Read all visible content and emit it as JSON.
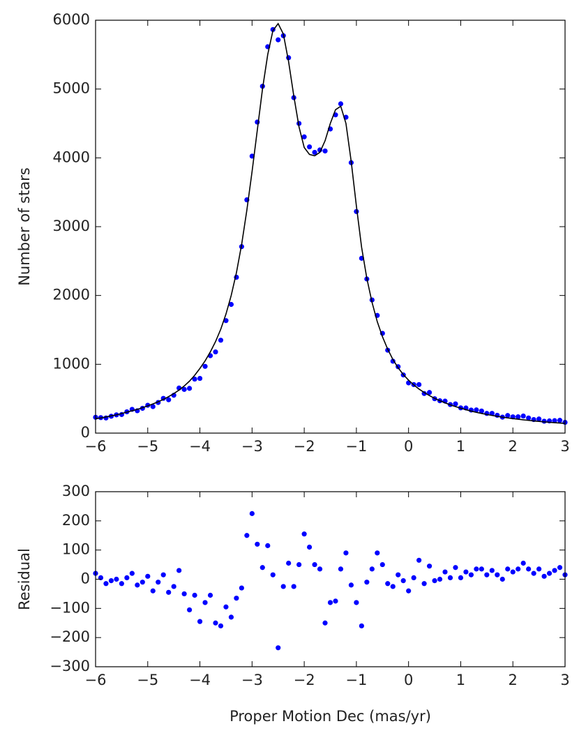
{
  "chart_data": [
    {
      "type": "scatter",
      "ylabel": "Number of stars",
      "xlim": [
        -6,
        3
      ],
      "xticks": [
        {
          "value": -6,
          "label": "−6"
        },
        {
          "value": -5,
          "label": "−5"
        },
        {
          "value": -4,
          "label": "−4"
        },
        {
          "value": -3,
          "label": "−3"
        },
        {
          "value": -2,
          "label": "−2"
        },
        {
          "value": -1,
          "label": "−1"
        },
        0,
        1,
        2,
        3
      ],
      "ylim": [
        0,
        6000
      ],
      "yticks": [
        0,
        1000,
        2000,
        3000,
        4000,
        5000,
        6000
      ],
      "x": [
        -6.0,
        -5.9,
        -5.8,
        -5.7,
        -5.6,
        -5.5,
        -5.4,
        -5.3,
        -5.2,
        -5.1,
        -5.0,
        -4.9,
        -4.8,
        -4.7,
        -4.6,
        -4.5,
        -4.4,
        -4.3,
        -4.2,
        -4.1,
        -4.0,
        -3.9,
        -3.8,
        -3.7,
        -3.6,
        -3.5,
        -3.4,
        -3.3,
        -3.2,
        -3.1,
        -3.0,
        -2.9,
        -2.8,
        -2.7,
        -2.6,
        -2.5,
        -2.4,
        -2.3,
        -2.2,
        -2.1,
        -2.0,
        -1.9,
        -1.8,
        -1.7,
        -1.6,
        -1.5,
        -1.4,
        -1.3,
        -1.2,
        -1.1,
        -1.0,
        -0.9,
        -0.8,
        -0.7,
        -0.6,
        -0.5,
        -0.4,
        -0.3,
        -0.2,
        -0.1,
        0.0,
        0.1,
        0.2,
        0.3,
        0.4,
        0.5,
        0.6,
        0.7,
        0.8,
        0.9,
        1.0,
        1.1,
        1.2,
        1.3,
        1.4,
        1.5,
        1.6,
        1.7,
        1.8,
        1.9,
        2.0,
        2.1,
        2.2,
        2.3,
        2.4,
        2.5,
        2.6,
        2.7,
        2.8,
        2.9,
        3.0
      ],
      "series": [
        {
          "mode": "markers",
          "color": "#0000ff",
          "values": [
            230,
            225,
            220,
            245,
            265,
            270,
            310,
            345,
            325,
            360,
            405,
            385,
            445,
            505,
            485,
            550,
            655,
            635,
            650,
            785,
            795,
            970,
            1125,
            1180,
            1350,
            1635,
            1870,
            2265,
            2710,
            3390,
            4025,
            4520,
            5040,
            5615,
            5865,
            5715,
            5775,
            5455,
            4875,
            4500,
            4305,
            4160,
            4080,
            4115,
            4100,
            4420,
            4625,
            4785,
            4590,
            3930,
            3220,
            2540,
            2240,
            1935,
            1710,
            1450,
            1205,
            1045,
            965,
            845,
            730,
            705,
            705,
            575,
            590,
            500,
            470,
            465,
            415,
            425,
            367,
            365,
            335,
            337,
            321,
            286,
            287,
            259,
            232,
            256,
            236,
            237,
            248,
            220,
            197,
            205,
            173,
            177,
            181,
            186,
            156
          ]
        },
        {
          "mode": "line",
          "color": "#000000",
          "values": [
            210,
            220,
            235,
            250,
            265,
            285,
            305,
            325,
            345,
            370,
            395,
            425,
            455,
            490,
            530,
            575,
            625,
            685,
            755,
            840,
            940,
            1050,
            1180,
            1330,
            1510,
            1730,
            2000,
            2330,
            2740,
            3240,
            3800,
            4400,
            5000,
            5500,
            5850,
            5950,
            5800,
            5400,
            4900,
            4450,
            4150,
            4050,
            4030,
            4080,
            4250,
            4500,
            4700,
            4750,
            4500,
            3950,
            3300,
            2700,
            2250,
            1900,
            1620,
            1400,
            1220,
            1070,
            950,
            850,
            770,
            700,
            640,
            590,
            545,
            505,
            470,
            440,
            410,
            385,
            362,
            340,
            320,
            302,
            286,
            271,
            257,
            244,
            232,
            221,
            211,
            202,
            193,
            185,
            177,
            170,
            163,
            157,
            151,
            146,
            141
          ]
        }
      ]
    },
    {
      "type": "scatter",
      "ylabel": "Residual",
      "xlabel": "Proper Motion Dec (mas/yr)",
      "xlim": [
        -6,
        3
      ],
      "xticks": [
        {
          "value": -6,
          "label": "−6"
        },
        {
          "value": -5,
          "label": "−5"
        },
        {
          "value": -4,
          "label": "−4"
        },
        {
          "value": -3,
          "label": "−3"
        },
        {
          "value": -2,
          "label": "−2"
        },
        {
          "value": -1,
          "label": "−1"
        },
        0,
        1,
        2,
        3
      ],
      "ylim": [
        -300,
        300
      ],
      "yticks": [
        {
          "value": -300,
          "label": "−300"
        },
        {
          "value": -200,
          "label": "−200"
        },
        {
          "value": -100,
          "label": "−100"
        },
        0,
        100,
        200,
        300
      ],
      "x": [
        -6.0,
        -5.9,
        -5.8,
        -5.7,
        -5.6,
        -5.5,
        -5.4,
        -5.3,
        -5.2,
        -5.1,
        -5.0,
        -4.9,
        -4.8,
        -4.7,
        -4.6,
        -4.5,
        -4.4,
        -4.3,
        -4.2,
        -4.1,
        -4.0,
        -3.9,
        -3.8,
        -3.7,
        -3.6,
        -3.5,
        -3.4,
        -3.3,
        -3.2,
        -3.1,
        -3.0,
        -2.9,
        -2.8,
        -2.7,
        -2.6,
        -2.5,
        -2.4,
        -2.3,
        -2.2,
        -2.1,
        -2.0,
        -1.9,
        -1.8,
        -1.7,
        -1.6,
        -1.5,
        -1.4,
        -1.3,
        -1.2,
        -1.1,
        -1.0,
        -0.9,
        -0.8,
        -0.7,
        -0.6,
        -0.5,
        -0.4,
        -0.3,
        -0.2,
        -0.1,
        0.0,
        0.1,
        0.2,
        0.3,
        0.4,
        0.5,
        0.6,
        0.7,
        0.8,
        0.9,
        1.0,
        1.1,
        1.2,
        1.3,
        1.4,
        1.5,
        1.6,
        1.7,
        1.8,
        1.9,
        2.0,
        2.1,
        2.2,
        2.3,
        2.4,
        2.5,
        2.6,
        2.7,
        2.8,
        2.9,
        3.0
      ],
      "series": [
        {
          "mode": "markers",
          "color": "#0000ff",
          "values": [
            20,
            5,
            -15,
            -5,
            0,
            -15,
            5,
            20,
            -20,
            -10,
            10,
            -40,
            -10,
            15,
            -45,
            -25,
            30,
            -50,
            -105,
            -55,
            -145,
            -80,
            -55,
            -150,
            -160,
            -95,
            -130,
            -65,
            -30,
            150,
            225,
            120,
            40,
            115,
            15,
            -235,
            -25,
            55,
            -25,
            50,
            155,
            110,
            50,
            35,
            -150,
            -80,
            -75,
            35,
            90,
            -20,
            -80,
            -160,
            -10,
            35,
            90,
            50,
            -15,
            -25,
            15,
            -5,
            -40,
            5,
            65,
            -15,
            45,
            -5,
            0,
            25,
            5,
            40,
            5,
            25,
            15,
            35,
            35,
            15,
            30,
            15,
            0,
            35,
            25,
            35,
            55,
            35,
            20,
            35,
            10,
            20,
            30,
            40,
            15
          ]
        }
      ]
    }
  ]
}
